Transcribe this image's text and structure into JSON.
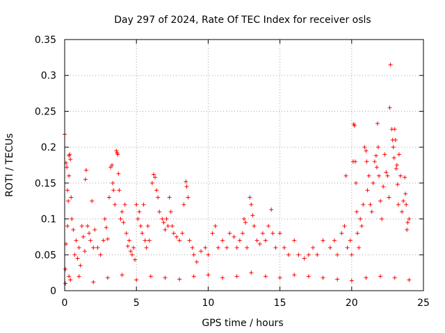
{
  "chart_data": {
    "type": "scatter",
    "title": "Day 297 of 2024, Rate Of TEC Index for receiver osls",
    "xlabel": "GPS time / hours",
    "ylabel": "ROTI / TECUs",
    "xlim": [
      0,
      25
    ],
    "ylim": [
      0,
      0.35
    ],
    "xticks": [
      0,
      5,
      10,
      15,
      20,
      25
    ],
    "yticks": [
      0,
      0.05,
      0.1,
      0.15,
      0.2,
      0.25,
      0.3,
      0.35
    ],
    "xtick_labels": [
      "0",
      "5",
      "10",
      "15",
      "20",
      "25"
    ],
    "ytick_labels": [
      "0",
      "0.05",
      "0.1",
      "0.15",
      "0.2",
      "0.25",
      "0.3",
      "0.35"
    ],
    "grid": true,
    "marker": "+",
    "series": [
      {
        "name": "ROTI",
        "color": "#ff0000",
        "points": [
          [
            0.0,
            0.218
          ],
          [
            0.1,
            0.178
          ],
          [
            0.15,
            0.172
          ],
          [
            0.2,
            0.14
          ],
          [
            0.25,
            0.125
          ],
          [
            0.3,
            0.188
          ],
          [
            0.35,
            0.19
          ],
          [
            0.4,
            0.183
          ],
          [
            0.3,
            0.16
          ],
          [
            0.45,
            0.13
          ],
          [
            0.5,
            0.1
          ],
          [
            0.6,
            0.085
          ],
          [
            0.2,
            0.09
          ],
          [
            0.1,
            0.065
          ],
          [
            0.05,
            0.03
          ],
          [
            0.3,
            0.02
          ],
          [
            0.7,
            0.05
          ],
          [
            0.8,
            0.07
          ],
          [
            0.9,
            0.045
          ],
          [
            1.0,
            0.06
          ],
          [
            1.1,
            0.035
          ],
          [
            1.2,
            0.09
          ],
          [
            1.3,
            0.075
          ],
          [
            1.4,
            0.055
          ],
          [
            1.5,
            0.168
          ],
          [
            1.45,
            0.155
          ],
          [
            1.6,
            0.09
          ],
          [
            1.7,
            0.08
          ],
          [
            1.8,
            0.07
          ],
          [
            1.9,
            0.125
          ],
          [
            2.0,
            0.06
          ],
          [
            2.1,
            0.085
          ],
          [
            2.3,
            0.06
          ],
          [
            2.5,
            0.05
          ],
          [
            2.7,
            0.07
          ],
          [
            2.8,
            0.1
          ],
          [
            2.9,
            0.088
          ],
          [
            3.0,
            0.072
          ],
          [
            3.1,
            0.13
          ],
          [
            3.2,
            0.172
          ],
          [
            3.3,
            0.175
          ],
          [
            3.35,
            0.15
          ],
          [
            3.4,
            0.14
          ],
          [
            3.5,
            0.12
          ],
          [
            3.6,
            0.195
          ],
          [
            3.65,
            0.192
          ],
          [
            3.7,
            0.19
          ],
          [
            3.75,
            0.163
          ],
          [
            3.8,
            0.14
          ],
          [
            3.9,
            0.1
          ],
          [
            4.0,
            0.11
          ],
          [
            4.1,
            0.095
          ],
          [
            4.2,
            0.12
          ],
          [
            4.3,
            0.08
          ],
          [
            4.4,
            0.062
          ],
          [
            4.5,
            0.07
          ],
          [
            4.6,
            0.055
          ],
          [
            4.7,
            0.05
          ],
          [
            4.8,
            0.06
          ],
          [
            4.9,
            0.043
          ],
          [
            5.0,
            0.12
          ],
          [
            5.1,
            0.1
          ],
          [
            5.2,
            0.11
          ],
          [
            5.3,
            0.09
          ],
          [
            5.4,
            0.08
          ],
          [
            5.5,
            0.12
          ],
          [
            5.6,
            0.07
          ],
          [
            5.7,
            0.06
          ],
          [
            5.8,
            0.09
          ],
          [
            5.9,
            0.07
          ],
          [
            6.1,
            0.15
          ],
          [
            6.2,
            0.162
          ],
          [
            6.3,
            0.158
          ],
          [
            6.4,
            0.14
          ],
          [
            6.5,
            0.13
          ],
          [
            6.6,
            0.11
          ],
          [
            6.8,
            0.1
          ],
          [
            6.9,
            0.095
          ],
          [
            7.0,
            0.085
          ],
          [
            7.1,
            0.1
          ],
          [
            7.2,
            0.09
          ],
          [
            7.3,
            0.13
          ],
          [
            7.4,
            0.11
          ],
          [
            7.5,
            0.09
          ],
          [
            7.6,
            0.08
          ],
          [
            7.8,
            0.075
          ],
          [
            8.0,
            0.07
          ],
          [
            8.2,
            0.08
          ],
          [
            8.3,
            0.12
          ],
          [
            8.45,
            0.152
          ],
          [
            8.5,
            0.145
          ],
          [
            8.6,
            0.13
          ],
          [
            8.7,
            0.07
          ],
          [
            8.9,
            0.06
          ],
          [
            9.0,
            0.05
          ],
          [
            9.2,
            0.04
          ],
          [
            9.5,
            0.055
          ],
          [
            9.8,
            0.06
          ],
          [
            10.0,
            0.05
          ],
          [
            10.3,
            0.08
          ],
          [
            10.5,
            0.09
          ],
          [
            10.7,
            0.06
          ],
          [
            11.0,
            0.07
          ],
          [
            11.3,
            0.06
          ],
          [
            11.5,
            0.08
          ],
          [
            11.8,
            0.075
          ],
          [
            12.0,
            0.06
          ],
          [
            12.2,
            0.07
          ],
          [
            12.4,
            0.08
          ],
          [
            12.5,
            0.1
          ],
          [
            12.6,
            0.095
          ],
          [
            12.7,
            0.06
          ],
          [
            12.9,
            0.13
          ],
          [
            13.0,
            0.12
          ],
          [
            13.1,
            0.105
          ],
          [
            13.2,
            0.09
          ],
          [
            13.4,
            0.07
          ],
          [
            13.6,
            0.065
          ],
          [
            13.8,
            0.08
          ],
          [
            14.0,
            0.07
          ],
          [
            14.2,
            0.09
          ],
          [
            14.4,
            0.113
          ],
          [
            14.5,
            0.08
          ],
          [
            14.7,
            0.06
          ],
          [
            15.0,
            0.08
          ],
          [
            15.3,
            0.06
          ],
          [
            15.6,
            0.05
          ],
          [
            16.0,
            0.07
          ],
          [
            16.3,
            0.05
          ],
          [
            16.7,
            0.045
          ],
          [
            17.0,
            0.05
          ],
          [
            17.3,
            0.06
          ],
          [
            17.6,
            0.05
          ],
          [
            18.0,
            0.07
          ],
          [
            18.5,
            0.06
          ],
          [
            18.8,
            0.07
          ],
          [
            19.0,
            0.05
          ],
          [
            19.3,
            0.08
          ],
          [
            19.5,
            0.09
          ],
          [
            19.6,
            0.16
          ],
          [
            19.7,
            0.06
          ],
          [
            19.9,
            0.07
          ],
          [
            20.0,
            0.05
          ],
          [
            20.1,
            0.18
          ],
          [
            20.15,
            0.232
          ],
          [
            20.2,
            0.23
          ],
          [
            20.25,
            0.18
          ],
          [
            20.3,
            0.15
          ],
          [
            20.35,
            0.11
          ],
          [
            20.4,
            0.08
          ],
          [
            20.5,
            0.06
          ],
          [
            20.6,
            0.1
          ],
          [
            20.7,
            0.09
          ],
          [
            20.8,
            0.12
          ],
          [
            20.9,
            0.2
          ],
          [
            21.0,
            0.195
          ],
          [
            21.05,
            0.18
          ],
          [
            21.1,
            0.14
          ],
          [
            21.2,
            0.16
          ],
          [
            21.3,
            0.12
          ],
          [
            21.4,
            0.11
          ],
          [
            21.5,
            0.15
          ],
          [
            21.6,
            0.18
          ],
          [
            21.7,
            0.188
          ],
          [
            21.75,
            0.172
          ],
          [
            21.8,
            0.233
          ],
          [
            21.85,
            0.2
          ],
          [
            21.9,
            0.16
          ],
          [
            22.0,
            0.125
          ],
          [
            22.1,
            0.1
          ],
          [
            22.2,
            0.145
          ],
          [
            22.3,
            0.19
          ],
          [
            22.4,
            0.165
          ],
          [
            22.5,
            0.16
          ],
          [
            22.6,
            0.13
          ],
          [
            22.65,
            0.255
          ],
          [
            22.7,
            0.315
          ],
          [
            22.8,
            0.225
          ],
          [
            22.85,
            0.21
          ],
          [
            22.9,
            0.2
          ],
          [
            22.95,
            0.185
          ],
          [
            23.0,
            0.225
          ],
          [
            23.05,
            0.21
          ],
          [
            23.1,
            0.17
          ],
          [
            23.15,
            0.175
          ],
          [
            23.2,
            0.148
          ],
          [
            23.25,
            0.12
          ],
          [
            23.3,
            0.19
          ],
          [
            23.4,
            0.16
          ],
          [
            23.5,
            0.11
          ],
          [
            23.6,
            0.125
          ],
          [
            23.7,
            0.158
          ],
          [
            23.75,
            0.135
          ],
          [
            23.8,
            0.12
          ],
          [
            23.85,
            0.085
          ],
          [
            23.9,
            0.095
          ],
          [
            24.0,
            0.1
          ],
          [
            0.05,
            0.01
          ],
          [
            0.4,
            0.015
          ],
          [
            1.0,
            0.02
          ],
          [
            2.0,
            0.012
          ],
          [
            3.0,
            0.018
          ],
          [
            4.0,
            0.022
          ],
          [
            5.0,
            0.015
          ],
          [
            6.0,
            0.02
          ],
          [
            7.0,
            0.018
          ],
          [
            8.0,
            0.016
          ],
          [
            9.0,
            0.02
          ],
          [
            10.0,
            0.022
          ],
          [
            11.0,
            0.018
          ],
          [
            12.0,
            0.02
          ],
          [
            13.0,
            0.025
          ],
          [
            14.0,
            0.02
          ],
          [
            15.0,
            0.018
          ],
          [
            16.0,
            0.022
          ],
          [
            17.0,
            0.02
          ],
          [
            18.0,
            0.018
          ],
          [
            19.0,
            0.016
          ],
          [
            20.0,
            0.014
          ],
          [
            21.0,
            0.018
          ],
          [
            22.0,
            0.02
          ],
          [
            23.0,
            0.018
          ],
          [
            24.0,
            0.015
          ]
        ]
      }
    ]
  }
}
